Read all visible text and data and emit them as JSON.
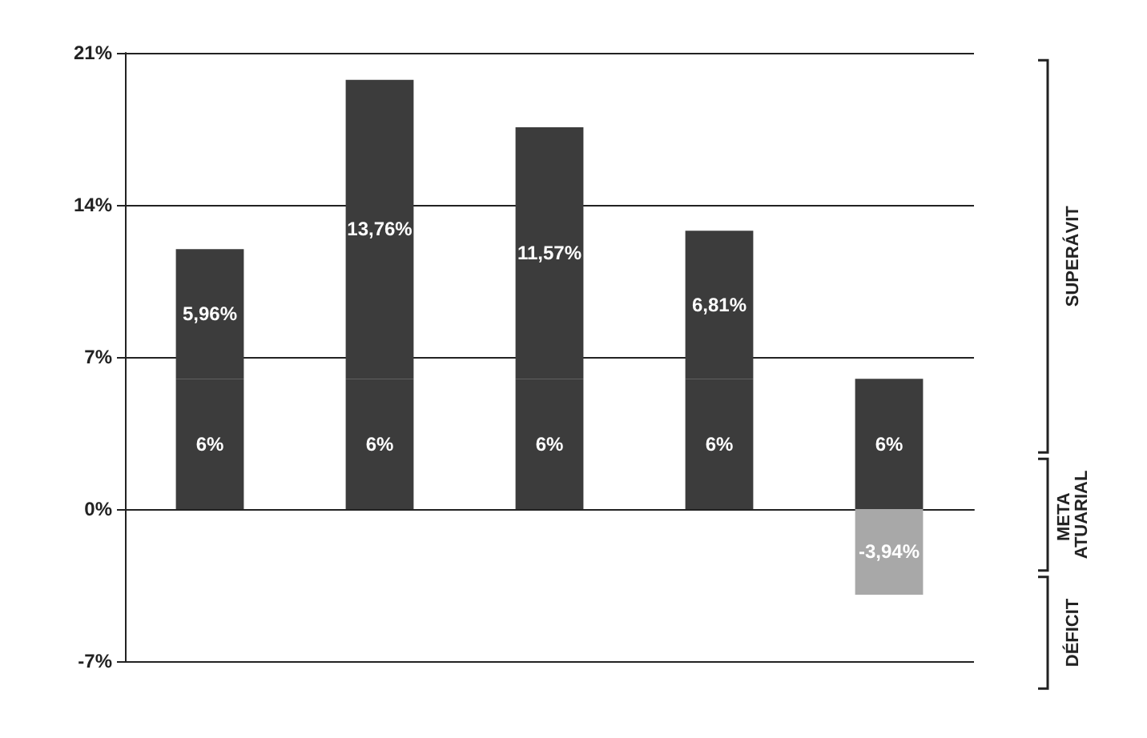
{
  "chart_data": {
    "type": "bar",
    "stacked": true,
    "categories": [
      null,
      null,
      null,
      null,
      null
    ],
    "series": [
      {
        "color": "#3c3c3c",
        "values": [
          6,
          6,
          6,
          6,
          6
        ],
        "value_labels": [
          "6%",
          "6%",
          "6%",
          "6%",
          "6%"
        ]
      },
      {
        "colors": [
          "#3c3c3c",
          "#3c3c3c",
          "#3c3c3c",
          "#3c3c3c",
          "#a8a8a8"
        ],
        "values": [
          5.96,
          13.76,
          11.57,
          6.81,
          -3.94
        ],
        "value_labels": [
          "5,96%",
          "13,76%",
          "11,57%",
          "6,81%",
          "-3,94%"
        ]
      }
    ],
    "ylim": [
      -7,
      21
    ],
    "yticks": [
      {
        "value": -7,
        "label": "-7%"
      },
      {
        "value": 0,
        "label": "0%"
      },
      {
        "value": 7,
        "label": "7%"
      },
      {
        "value": 14,
        "label": "14%"
      },
      {
        "value": 21,
        "label": "21%"
      }
    ],
    "grid": "y",
    "annotations": [
      "SUPERÁVIT",
      "META ATUARIAL",
      "DÉFICIT"
    ]
  }
}
